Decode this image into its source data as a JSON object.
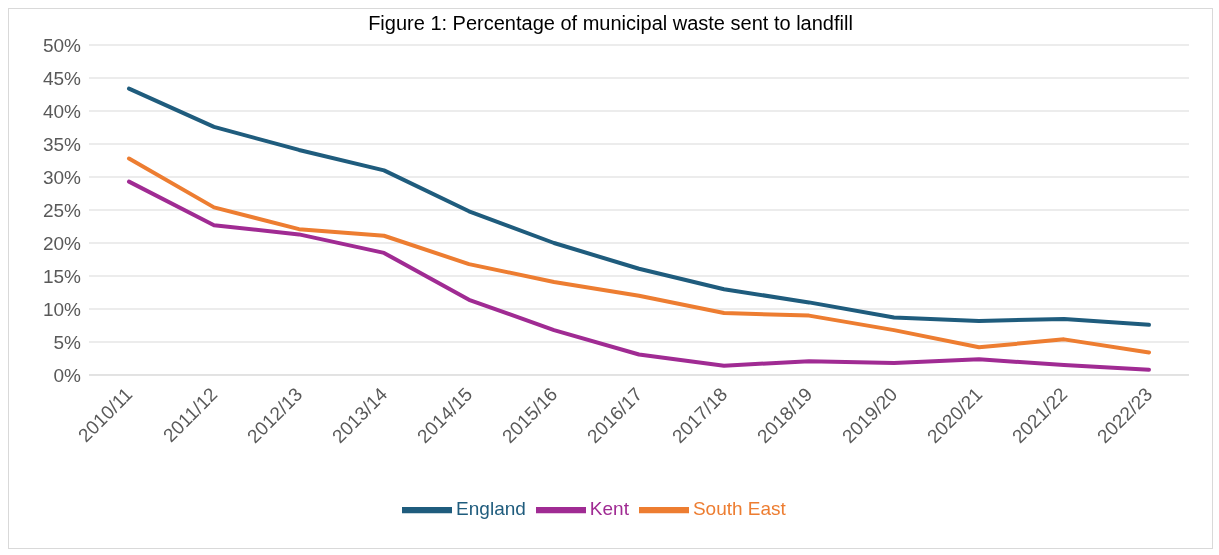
{
  "chart_data": {
    "type": "line",
    "title": "Figure 1: Percentage of municipal waste sent to landfill",
    "categories": [
      "2010/11",
      "2011/12",
      "2012/13",
      "2013/14",
      "2014/15",
      "2015/16",
      "2016/17",
      "2017/18",
      "2018/19",
      "2019/20",
      "2020/21",
      "2021/22",
      "2022/23"
    ],
    "series": [
      {
        "name": "England",
        "color": "#1f5c7d",
        "values": [
          43.4,
          37.6,
          34.1,
          31.0,
          24.8,
          20.0,
          16.1,
          13.0,
          11.0,
          8.7,
          8.2,
          8.5,
          7.6
        ]
      },
      {
        "name": "South East",
        "color": "#ed7d31",
        "values": [
          32.8,
          25.4,
          22.1,
          21.1,
          16.8,
          14.1,
          12.0,
          9.4,
          9.0,
          6.8,
          4.2,
          5.4,
          3.4
        ]
      },
      {
        "name": "Kent",
        "color": "#a02b93",
        "values": [
          29.3,
          22.7,
          21.3,
          18.5,
          11.4,
          6.8,
          3.1,
          1.4,
          2.1,
          1.8,
          2.4,
          1.5,
          0.8
        ]
      }
    ],
    "ylim": [
      0,
      50
    ],
    "yticks": [
      {
        "value": 0,
        "label": "0%"
      },
      {
        "value": 5,
        "label": "5%"
      },
      {
        "value": 10,
        "label": "10%"
      },
      {
        "value": 15,
        "label": "15%"
      },
      {
        "value": 20,
        "label": "20%"
      },
      {
        "value": 25,
        "label": "25%"
      },
      {
        "value": 30,
        "label": "30%"
      },
      {
        "value": 35,
        "label": "35%"
      },
      {
        "value": 40,
        "label": "40%"
      },
      {
        "value": 45,
        "label": "45%"
      },
      {
        "value": 50,
        "label": "50%"
      }
    ],
    "grid": "y",
    "legend": "bottom",
    "marker": "none",
    "line_style": "solid"
  }
}
